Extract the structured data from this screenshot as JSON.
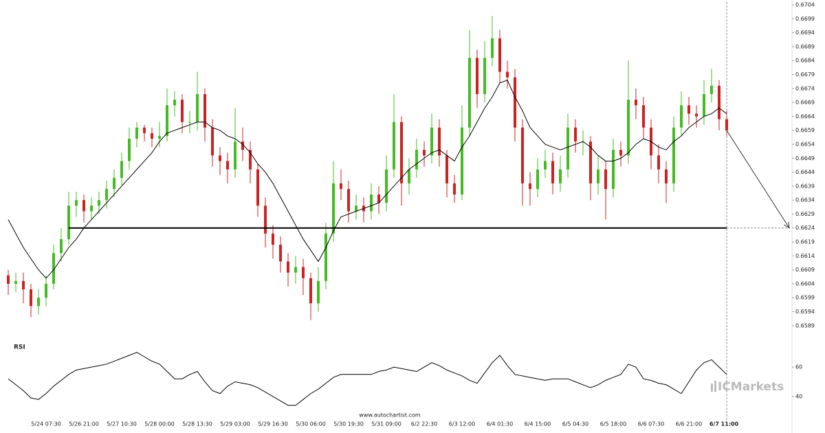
{
  "chart_data": {
    "type": "candlestick",
    "categories": [
      null,
      null,
      null,
      null,
      null,
      "5/24 07:30",
      null,
      null,
      null,
      null,
      "5/26 21:00",
      null,
      null,
      null,
      null,
      "5/27 10:30",
      null,
      null,
      null,
      null,
      "5/28 00:00",
      null,
      null,
      null,
      null,
      "5/28 13:30",
      null,
      null,
      null,
      null,
      "5/29 03:00",
      null,
      null,
      null,
      null,
      "5/29 16:30",
      null,
      null,
      null,
      null,
      "5/30 06:00",
      null,
      null,
      null,
      null,
      "5/30 19:30",
      null,
      null,
      null,
      null,
      "5/31 09:00",
      null,
      null,
      null,
      null,
      "6/2 22:30",
      null,
      null,
      null,
      null,
      "6/3 12:00",
      null,
      null,
      null,
      null,
      "6/4 01:30",
      null,
      null,
      null,
      null,
      "6/4 15:00",
      null,
      null,
      null,
      null,
      "6/5 04:30",
      null,
      null,
      null,
      null,
      "6/5 18:00",
      null,
      null,
      null,
      null,
      "6/6 07:30",
      null,
      null,
      null,
      null,
      "6/6 21:00",
      null,
      null,
      null,
      null,
      "6/7 11:00"
    ],
    "open": [
      0.6607,
      0.6604,
      0.6605,
      0.6602,
      0.6596,
      0.6599,
      0.6604,
      0.6615,
      0.662,
      0.6632,
      0.6634,
      0.663,
      0.6632,
      0.6634,
      0.6638,
      0.6642,
      0.6648,
      0.6656,
      0.666,
      0.6658,
      0.6656,
      0.6657,
      0.6668,
      0.667,
      0.6662,
      0.6662,
      0.6672,
      0.666,
      0.665,
      0.6648,
      0.6645,
      0.6655,
      0.6652,
      0.6645,
      0.6632,
      0.6622,
      0.6618,
      0.6612,
      0.6608,
      0.661,
      0.6606,
      0.6597,
      0.6605,
      0.6622,
      0.664,
      0.6638,
      0.663,
      0.6632,
      0.663,
      0.6636,
      0.6633,
      0.6645,
      0.6662,
      0.664,
      0.6645,
      0.6652,
      0.665,
      0.666,
      0.665,
      0.664,
      0.6636,
      0.666,
      0.6685,
      0.6672,
      0.6685,
      0.6692,
      0.668,
      0.6678,
      0.666,
      0.664,
      0.6638,
      0.6645,
      0.6648,
      0.664,
      0.6645,
      0.666,
      0.6655,
      0.6655,
      0.664,
      0.6645,
      0.6638,
      0.6652,
      0.665,
      0.667,
      0.6668,
      0.666,
      0.665,
      0.6645,
      0.664,
      0.666,
      0.6668,
      0.6665,
      0.6664,
      0.6672,
      0.6675,
      0.6663
    ],
    "high": [
      0.6609,
      0.6608,
      0.6608,
      0.6604,
      0.6602,
      0.6607,
      0.6618,
      0.6624,
      0.6637,
      0.6637,
      0.6636,
      0.6635,
      0.6637,
      0.6641,
      0.6645,
      0.6651,
      0.666,
      0.6662,
      0.6661,
      0.666,
      0.6662,
      0.6674,
      0.6673,
      0.6672,
      0.6666,
      0.668,
      0.6674,
      0.6663,
      0.6653,
      0.6651,
      0.6667,
      0.666,
      0.6655,
      0.6647,
      0.6635,
      0.6625,
      0.6621,
      0.6615,
      0.6614,
      0.6613,
      0.6608,
      0.661,
      0.6626,
      0.6648,
      0.6645,
      0.6641,
      0.6636,
      0.6635,
      0.664,
      0.6639,
      0.665,
      0.6672,
      0.6664,
      0.6649,
      0.6656,
      0.6655,
      0.6665,
      0.6663,
      0.6652,
      0.6643,
      0.6668,
      0.6695,
      0.6688,
      0.6691,
      0.67,
      0.6695,
      0.6684,
      0.6681,
      0.6663,
      0.6644,
      0.6649,
      0.6652,
      0.6651,
      0.665,
      0.6665,
      0.6663,
      0.6659,
      0.6657,
      0.665,
      0.6648,
      0.6656,
      0.6655,
      0.6684,
      0.6674,
      0.6671,
      0.6663,
      0.6654,
      0.6648,
      0.6664,
      0.6673,
      0.6671,
      0.6668,
      0.6677,
      0.6681,
      0.6677,
      0.6666
    ],
    "low": [
      0.66,
      0.6601,
      0.6597,
      0.6592,
      0.6593,
      0.6596,
      0.6602,
      0.6612,
      0.6618,
      0.6628,
      0.6626,
      0.6627,
      0.6629,
      0.6631,
      0.6635,
      0.6639,
      0.6645,
      0.6653,
      0.6655,
      0.6653,
      0.6653,
      0.6655,
      0.6664,
      0.6658,
      0.6658,
      0.6659,
      0.6655,
      0.6646,
      0.6643,
      0.664,
      0.6642,
      0.6648,
      0.664,
      0.6628,
      0.6617,
      0.6613,
      0.6608,
      0.6603,
      0.6604,
      0.66,
      0.6591,
      0.6594,
      0.6602,
      0.6619,
      0.6634,
      0.6626,
      0.6627,
      0.6626,
      0.6627,
      0.6629,
      0.663,
      0.6642,
      0.6632,
      0.6636,
      0.6642,
      0.6646,
      0.6647,
      0.6646,
      0.6635,
      0.6633,
      0.6634,
      0.6657,
      0.6667,
      0.6669,
      0.6682,
      0.6676,
      0.6674,
      0.6655,
      0.6632,
      0.6632,
      0.6635,
      0.6642,
      0.6636,
      0.6637,
      0.6642,
      0.6651,
      0.665,
      0.6634,
      0.6636,
      0.6627,
      0.6635,
      0.6646,
      0.6647,
      0.6663,
      0.6656,
      0.6645,
      0.664,
      0.6633,
      0.6637,
      0.6657,
      0.6661,
      0.666,
      0.6661,
      0.6669,
      0.6659,
      0.6657
    ],
    "close": [
      0.6604,
      0.6605,
      0.6602,
      0.6596,
      0.6599,
      0.6604,
      0.6615,
      0.662,
      0.6632,
      0.6634,
      0.663,
      0.6632,
      0.6634,
      0.6638,
      0.6642,
      0.6648,
      0.6656,
      0.666,
      0.6658,
      0.6656,
      0.6657,
      0.6668,
      0.667,
      0.6662,
      0.6662,
      0.6672,
      0.666,
      0.665,
      0.6648,
      0.6645,
      0.6655,
      0.6652,
      0.6645,
      0.6632,
      0.6622,
      0.6618,
      0.6612,
      0.6608,
      0.661,
      0.6606,
      0.6597,
      0.6605,
      0.6622,
      0.664,
      0.6638,
      0.663,
      0.6632,
      0.663,
      0.6636,
      0.6633,
      0.6645,
      0.6662,
      0.664,
      0.6645,
      0.6652,
      0.665,
      0.666,
      0.665,
      0.664,
      0.6636,
      0.666,
      0.6685,
      0.6672,
      0.6685,
      0.6692,
      0.668,
      0.6678,
      0.666,
      0.664,
      0.6638,
      0.6645,
      0.6648,
      0.664,
      0.6645,
      0.666,
      0.6655,
      0.6655,
      0.664,
      0.6645,
      0.6638,
      0.6652,
      0.665,
      0.667,
      0.6668,
      0.666,
      0.665,
      0.6645,
      0.664,
      0.666,
      0.6668,
      0.6665,
      0.6664,
      0.6672,
      0.6675,
      0.6663,
      0.6659
    ],
    "up_color": "#44bb22",
    "down_color": "#cc2222",
    "ylim": [
      0.6585,
      0.6705
    ],
    "yticks": [
      0.6589,
      0.6594,
      0.6599,
      0.6604,
      0.6609,
      0.6614,
      0.6619,
      0.6624,
      0.6629,
      0.6634,
      0.6639,
      0.6644,
      0.6649,
      0.6654,
      0.6659,
      0.6664,
      0.6669,
      0.6674,
      0.6679,
      0.6684,
      0.6689,
      0.6694,
      0.6699,
      0.6704
    ],
    "moving_average": {
      "color": "#000000",
      "values": [
        0.6627,
        0.6622,
        0.6617,
        0.6613,
        0.6609,
        0.6606,
        0.6609,
        0.6613,
        0.6617,
        0.662,
        0.6624,
        0.6627,
        0.663,
        0.6633,
        0.6636,
        0.6639,
        0.6642,
        0.6645,
        0.6648,
        0.6651,
        0.6655,
        0.6658,
        0.6659,
        0.666,
        0.6661,
        0.6662,
        0.6662,
        0.666,
        0.6659,
        0.6657,
        0.6656,
        0.6654,
        0.6651,
        0.6647,
        0.6644,
        0.664,
        0.6635,
        0.663,
        0.6625,
        0.662,
        0.6616,
        0.6612,
        0.6617,
        0.6623,
        0.6628,
        0.6629,
        0.663,
        0.6631,
        0.6632,
        0.6633,
        0.6636,
        0.6639,
        0.6642,
        0.6645,
        0.6647,
        0.6649,
        0.6651,
        0.6652,
        0.665,
        0.6648,
        0.6653,
        0.6657,
        0.6662,
        0.6667,
        0.6671,
        0.6676,
        0.6677,
        0.6671,
        0.6666,
        0.666,
        0.6657,
        0.6654,
        0.6653,
        0.6652,
        0.6653,
        0.6654,
        0.6655,
        0.6653,
        0.665,
        0.6648,
        0.6648,
        0.6649,
        0.6651,
        0.6654,
        0.6656,
        0.6655,
        0.6653,
        0.6652,
        0.6655,
        0.6657,
        0.666,
        0.6662,
        0.6664,
        0.6665,
        0.6667,
        0.6665
      ]
    },
    "level": 0.6624,
    "rsi": {
      "title": "RSI",
      "color": "#000000",
      "ylim": [
        25,
        75
      ],
      "yticks": [
        40,
        60
      ],
      "values": [
        52,
        48,
        44,
        39,
        38,
        42,
        47,
        51,
        55,
        58,
        59,
        60,
        61,
        62,
        64,
        66,
        68,
        70,
        67,
        64,
        62,
        57,
        52,
        52,
        55,
        57,
        50,
        44,
        42,
        47,
        50,
        49,
        48,
        46,
        43,
        40,
        37,
        34,
        34,
        38,
        42,
        45,
        49,
        53,
        55,
        55,
        55,
        55,
        55,
        57,
        58,
        60,
        59,
        58,
        57,
        60,
        63,
        61,
        58,
        56,
        54,
        51,
        49,
        56,
        63,
        68,
        61,
        55,
        54,
        53,
        52,
        51,
        52,
        52,
        52,
        50,
        48,
        46,
        48,
        51,
        53,
        55,
        62,
        60,
        52,
        51,
        49,
        48,
        45,
        42,
        50,
        58,
        63,
        65,
        60,
        55
      ]
    },
    "watermark": "www.autochartist.com",
    "logo": "ICMarkets"
  }
}
